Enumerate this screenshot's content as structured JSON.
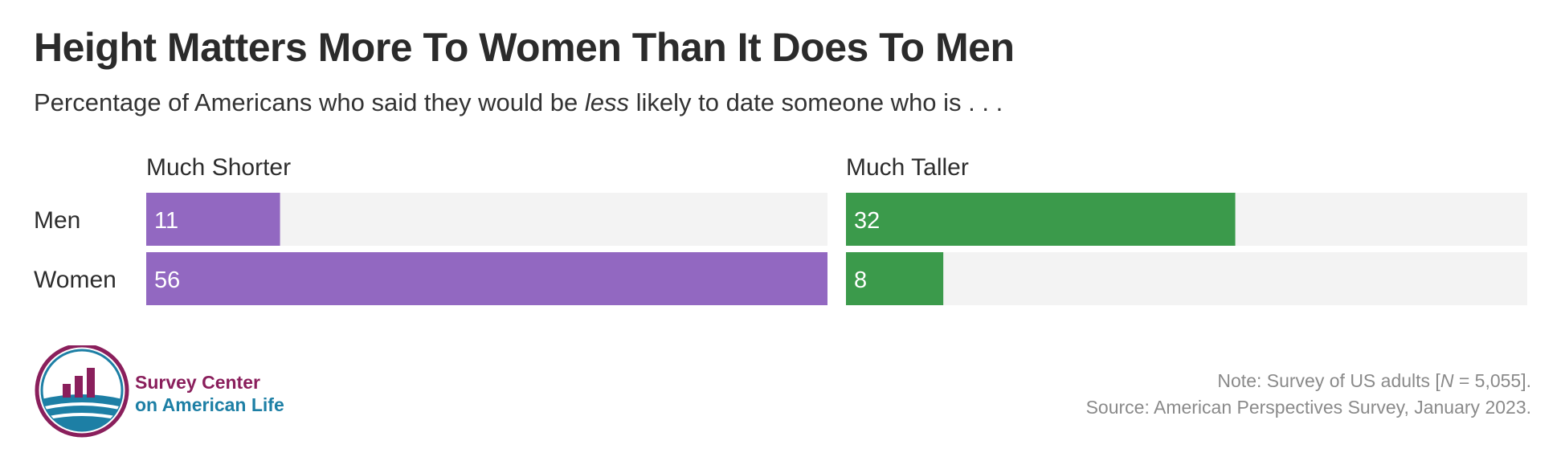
{
  "header": {
    "title": "Height Matters More To Women Than It Does To Men",
    "subtitle_pre": "Percentage of Americans who said they would be ",
    "subtitle_em": "less",
    "subtitle_post": " likely to date someone who is . . ."
  },
  "chart_data": {
    "type": "bar",
    "orientation": "horizontal",
    "categories": [
      "Men",
      "Women"
    ],
    "panels": [
      {
        "title": "Much Shorter",
        "color": "#9268c1",
        "values": [
          11,
          56
        ]
      },
      {
        "title": "Much Taller",
        "color": "#3b9a4b",
        "values": [
          32,
          8
        ]
      }
    ],
    "xlim": [
      0,
      56
    ],
    "track_color": "#f3f3f3",
    "grid": false,
    "legend": "none"
  },
  "footer": {
    "logo_line1": "Survey Center",
    "logo_line2": "on American Life",
    "note_pre": "Note: Survey of US adults [",
    "note_n": "N",
    "note_post": " = 5,055].",
    "source": "Source: American Perspectives Survey, January 2023.",
    "logo_colors": {
      "maroon": "#8a1f5c",
      "blue": "#1d7fa5"
    }
  }
}
